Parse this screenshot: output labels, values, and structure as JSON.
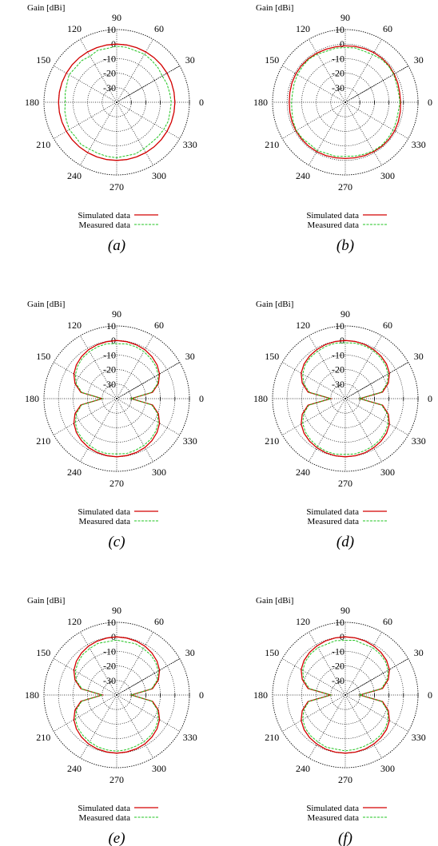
{
  "chart_data": [
    {
      "type": "polar",
      "panel_label": "(a)",
      "title": "",
      "radial_label": "Gain [dBi]",
      "radial_ticks": [
        "10",
        "0",
        "-10",
        "-20",
        "-30"
      ],
      "rlim": [
        -40,
        10
      ],
      "angle_ticks": [
        "0",
        "30",
        "60",
        "90",
        "120",
        "150",
        "180",
        "210",
        "240",
        "270",
        "300",
        "330"
      ],
      "grid": true,
      "legend_position": "bottom",
      "pattern": "omni",
      "theta_deg": [
        0,
        10,
        20,
        30,
        40,
        50,
        60,
        70,
        80,
        90,
        100,
        110,
        120,
        130,
        140,
        150,
        160,
        170,
        180,
        190,
        200,
        210,
        220,
        230,
        240,
        250,
        260,
        270,
        280,
        290,
        300,
        310,
        320,
        330,
        340,
        350
      ],
      "series": [
        {
          "name": "Simulated data",
          "color": "#d40000",
          "style": "solid",
          "values": [
            0,
            0,
            0,
            0,
            0,
            0,
            0,
            0,
            0,
            0,
            0,
            0,
            0,
            0,
            0,
            0,
            0,
            0,
            0,
            0,
            0,
            0,
            0,
            0,
            0,
            0,
            0,
            0,
            0,
            0,
            0,
            0,
            0,
            0,
            0,
            0
          ]
        },
        {
          "name": "Measured data",
          "color": "#22c422",
          "style": "dashed",
          "values": [
            -2.5,
            -3,
            -3.2,
            -3.8,
            -3,
            -2.5,
            -1.8,
            -2.3,
            -1.6,
            -1.5,
            -2.4,
            -2,
            -3.4,
            -2.6,
            -3,
            -2.2,
            -3.6,
            -4,
            -4.6,
            -3.8,
            -3.2,
            -2.4,
            -3,
            -2,
            -2.8,
            -2.6,
            -2.2,
            -1.8,
            -2.6,
            -2.2,
            -3,
            -3.4,
            -3,
            -2.6,
            -2.2,
            -2.8
          ]
        }
      ]
    },
    {
      "type": "polar",
      "panel_label": "(b)",
      "title": "",
      "radial_label": "Gain [dBi]",
      "radial_ticks": [
        "10",
        "0",
        "-10",
        "-20",
        "-30"
      ],
      "rlim": [
        -40,
        10
      ],
      "angle_ticks": [
        "0",
        "30",
        "60",
        "90",
        "120",
        "150",
        "180",
        "210",
        "240",
        "270",
        "300",
        "330"
      ],
      "grid": true,
      "legend_position": "bottom",
      "pattern": "omni",
      "theta_deg": [
        0,
        10,
        20,
        30,
        40,
        50,
        60,
        70,
        80,
        90,
        100,
        110,
        120,
        130,
        140,
        150,
        160,
        170,
        180,
        190,
        200,
        210,
        220,
        230,
        240,
        250,
        260,
        270,
        280,
        290,
        300,
        310,
        320,
        330,
        340,
        350
      ],
      "series": [
        {
          "name": "Simulated data",
          "color": "#d40000",
          "style": "solid",
          "values": [
            -2,
            -2,
            -1.6,
            -1.2,
            -0.8,
            -0.6,
            -0.6,
            -0.8,
            -1,
            -1.2,
            -1.3,
            -1.2,
            -1,
            -0.8,
            -0.7,
            -0.8,
            -1,
            -1.3,
            -1.5,
            -1.3,
            -1,
            -0.8,
            -0.7,
            -0.7,
            -0.8,
            -1,
            -1.2,
            -1.3,
            -1.2,
            -1,
            -0.8,
            -0.6,
            -0.6,
            -0.8,
            -1.2,
            -1.6
          ]
        },
        {
          "name": "Measured data",
          "color": "#22c422",
          "style": "dashed",
          "values": [
            -2.4,
            -2.8,
            -2.6,
            -1.6,
            -1.2,
            -1.4,
            -2.2,
            -2.6,
            -2,
            -2.4,
            -2.2,
            -2.6,
            -1.8,
            -1.2,
            -1.6,
            -2,
            -2.6,
            -3.2,
            -3,
            -2.8,
            -1.8,
            -1.2,
            -1.4,
            -2.2,
            -1.6,
            -2.6,
            -2.2,
            -2.8,
            -2.4,
            -2,
            -1.4,
            -1.2,
            -1.6,
            -2,
            -2.6,
            -3
          ]
        }
      ]
    },
    {
      "type": "polar",
      "panel_label": "(c)",
      "title": "",
      "radial_label": "Gain [dBi]",
      "radial_ticks": [
        "10",
        "0",
        "-10",
        "-20",
        "-30"
      ],
      "rlim": [
        -40,
        10
      ],
      "angle_ticks": [
        "0",
        "30",
        "60",
        "90",
        "120",
        "150",
        "180",
        "210",
        "240",
        "270",
        "300",
        "330"
      ],
      "grid": true,
      "legend_position": "bottom",
      "pattern": "dipole",
      "theta_deg": [
        0,
        10,
        20,
        30,
        40,
        50,
        60,
        70,
        80,
        90,
        100,
        110,
        120,
        130,
        140,
        150,
        160,
        170,
        180,
        190,
        200,
        210,
        220,
        230,
        240,
        250,
        260,
        270,
        280,
        290,
        300,
        310,
        320,
        330,
        340,
        350
      ],
      "series": [
        {
          "name": "Simulated data",
          "color": "#d40000",
          "style": "solid",
          "values": [
            -30,
            -15,
            -9.5,
            -6,
            -3.8,
            -2.3,
            -1.2,
            -0.6,
            -0.2,
            0,
            -0.2,
            -0.6,
            -1.2,
            -2.3,
            -3.8,
            -6,
            -9.5,
            -15,
            -30,
            -15,
            -9.5,
            -6,
            -3.8,
            -2.3,
            -1.2,
            -0.6,
            -0.2,
            0,
            -0.2,
            -0.6,
            -1.2,
            -2.3,
            -3.8,
            -6,
            -9.5,
            -15
          ]
        },
        {
          "name": "Measured data",
          "color": "#22c422",
          "style": "dashed",
          "values": [
            -30,
            -15.6,
            -10.2,
            -7,
            -5,
            -3.8,
            -2.6,
            -2,
            -1.8,
            -2.2,
            -1.6,
            -2,
            -2.6,
            -3.4,
            -5,
            -7.2,
            -10.4,
            -15.8,
            -30,
            -15.6,
            -10.6,
            -7.2,
            -4.8,
            -3.6,
            -2.8,
            -1.8,
            -1.6,
            -2,
            -1.6,
            -2.2,
            -2.8,
            -3.6,
            -5,
            -7,
            -10.2,
            -15.6
          ]
        }
      ]
    },
    {
      "type": "polar",
      "panel_label": "(d)",
      "title": "",
      "radial_label": "Gain [dBi]",
      "radial_ticks": [
        "10",
        "0",
        "-10",
        "-20",
        "-30"
      ],
      "rlim": [
        -40,
        10
      ],
      "angle_ticks": [
        "0",
        "30",
        "60",
        "90",
        "120",
        "150",
        "180",
        "210",
        "240",
        "270",
        "300",
        "330"
      ],
      "grid": true,
      "legend_position": "bottom",
      "pattern": "dipole",
      "theta_deg": [
        0,
        10,
        20,
        30,
        40,
        50,
        60,
        70,
        80,
        90,
        100,
        110,
        120,
        130,
        140,
        150,
        160,
        170,
        180,
        190,
        200,
        210,
        220,
        230,
        240,
        250,
        260,
        270,
        280,
        290,
        300,
        310,
        320,
        330,
        340,
        350
      ],
      "series": [
        {
          "name": "Simulated data",
          "color": "#d40000",
          "style": "solid",
          "values": [
            -30,
            -14,
            -8.5,
            -5,
            -3,
            -1.8,
            -1,
            -0.4,
            -0.1,
            0,
            -0.1,
            -0.4,
            -1,
            -1.8,
            -3,
            -5,
            -8.5,
            -14,
            -30,
            -14,
            -8.5,
            -5,
            -3,
            -1.8,
            -1,
            -0.4,
            -0.1,
            0,
            -0.1,
            -0.4,
            -1,
            -1.8,
            -3,
            -5,
            -8.5,
            -14
          ]
        },
        {
          "name": "Measured data",
          "color": "#22c422",
          "style": "dashed",
          "values": [
            -30,
            -14.8,
            -9.4,
            -6,
            -4,
            -2.8,
            -1.8,
            -1.4,
            -1.2,
            -1.6,
            -1.2,
            -1.6,
            -2.2,
            -2.8,
            -4,
            -6.2,
            -9.6,
            -15,
            -30,
            -14.6,
            -9.6,
            -6.2,
            -4.2,
            -3,
            -2,
            -1.4,
            -1.2,
            -1.6,
            -1.4,
            -1.8,
            -2.2,
            -3,
            -4.2,
            -6,
            -9.2,
            -14.6
          ]
        }
      ]
    },
    {
      "type": "polar",
      "panel_label": "(e)",
      "title": "",
      "radial_label": "Gain [dBi]",
      "radial_ticks": [
        "10",
        "0",
        "-10",
        "-20",
        "-30"
      ],
      "rlim": [
        -40,
        10
      ],
      "angle_ticks": [
        "0",
        "30",
        "60",
        "90",
        "120",
        "150",
        "180",
        "210",
        "240",
        "270",
        "300",
        "330"
      ],
      "grid": true,
      "legend_position": "bottom",
      "pattern": "dipole",
      "theta_deg": [
        0,
        10,
        20,
        30,
        40,
        50,
        60,
        70,
        80,
        90,
        100,
        110,
        120,
        130,
        140,
        150,
        160,
        170,
        180,
        190,
        200,
        210,
        220,
        230,
        240,
        250,
        260,
        270,
        280,
        290,
        300,
        310,
        320,
        330,
        340,
        350
      ],
      "series": [
        {
          "name": "Simulated data",
          "color": "#d40000",
          "style": "solid",
          "values": [
            -30,
            -15,
            -9.5,
            -6,
            -3.8,
            -2.3,
            -1.2,
            -0.6,
            -0.2,
            0,
            -0.2,
            -0.6,
            -1.2,
            -2.3,
            -3.8,
            -6,
            -9.5,
            -15,
            -30,
            -15,
            -9.5,
            -6,
            -3.8,
            -2.3,
            -1.2,
            -0.6,
            -0.2,
            0,
            -0.2,
            -0.6,
            -1.2,
            -2.3,
            -3.8,
            -6,
            -9.5,
            -15
          ]
        },
        {
          "name": "Measured data",
          "color": "#22c422",
          "style": "dashed",
          "values": [
            -30,
            -15.6,
            -10.4,
            -7,
            -5,
            -3.8,
            -3.2,
            -2.4,
            -3,
            -2.2,
            -2.8,
            -2.2,
            -3,
            -3.6,
            -5.2,
            -7.2,
            -10.4,
            -15.8,
            -30,
            -15.6,
            -10.6,
            -7.2,
            -5,
            -3.8,
            -2.8,
            -2,
            -1.6,
            -1.4,
            -1.8,
            -2.4,
            -2.8,
            -3.6,
            -5,
            -7,
            -10.2,
            -15.6
          ]
        }
      ]
    },
    {
      "type": "polar",
      "panel_label": "(f)",
      "title": "",
      "radial_label": "Gain [dBi]",
      "radial_ticks": [
        "10",
        "0",
        "-10",
        "-20",
        "-30"
      ],
      "rlim": [
        -40,
        10
      ],
      "angle_ticks": [
        "0",
        "30",
        "60",
        "90",
        "120",
        "150",
        "180",
        "210",
        "240",
        "270",
        "300",
        "330"
      ],
      "grid": true,
      "legend_position": "bottom",
      "pattern": "dipole",
      "theta_deg": [
        0,
        10,
        20,
        30,
        40,
        50,
        60,
        70,
        80,
        90,
        100,
        110,
        120,
        130,
        140,
        150,
        160,
        170,
        180,
        190,
        200,
        210,
        220,
        230,
        240,
        250,
        260,
        270,
        280,
        290,
        300,
        310,
        320,
        330,
        340,
        350
      ],
      "series": [
        {
          "name": "Simulated data",
          "color": "#d40000",
          "style": "solid",
          "values": [
            -30,
            -14,
            -8.5,
            -5,
            -3,
            -1.8,
            -1,
            -0.4,
            -0.1,
            0,
            -0.1,
            -0.4,
            -1,
            -1.8,
            -3,
            -5,
            -8.5,
            -14,
            -30,
            -14,
            -8.5,
            -5,
            -3,
            -1.8,
            -1,
            -0.4,
            -0.1,
            0,
            -0.1,
            -0.4,
            -1,
            -1.8,
            -3,
            -5,
            -8.5,
            -14
          ]
        },
        {
          "name": "Measured data",
          "color": "#22c422",
          "style": "dashed",
          "values": [
            -30,
            -14.8,
            -9.4,
            -6,
            -4,
            -3,
            -2.4,
            -2.8,
            -1.8,
            -2.4,
            -2,
            -2.8,
            -2.4,
            -3,
            -4.2,
            -6.2,
            -9.6,
            -15,
            -30,
            -14.6,
            -9.6,
            -6.2,
            -4.2,
            -3.2,
            -2.6,
            -1.8,
            -2.2,
            -1.6,
            -2,
            -2.4,
            -2.6,
            -3.2,
            -4.2,
            -6,
            -9.2,
            -14.6
          ]
        }
      ]
    }
  ]
}
